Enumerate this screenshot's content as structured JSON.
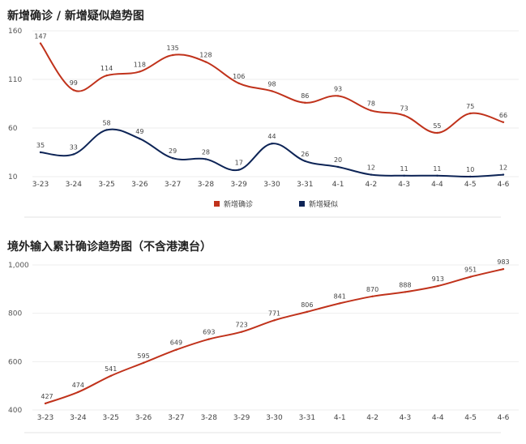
{
  "colors": {
    "confirmed": "#c0321b",
    "suspected": "#0d2456"
  },
  "chart_data": [
    {
      "type": "line",
      "title": "新增确诊 / 新增疑似趋势图",
      "categories": [
        "3-23",
        "3-24",
        "3-25",
        "3-26",
        "3-27",
        "3-28",
        "3-29",
        "3-30",
        "3-31",
        "4-1",
        "4-2",
        "4-3",
        "4-4",
        "4-5",
        "4-6"
      ],
      "series": [
        {
          "name": "新增确诊",
          "color": "#c0321b",
          "values": [
            147,
            99,
            114,
            118,
            135,
            128,
            106,
            98,
            86,
            93,
            78,
            73,
            55,
            75,
            66
          ]
        },
        {
          "name": "新增疑似",
          "color": "#0d2456",
          "values": [
            35,
            33,
            58,
            49,
            29,
            28,
            17,
            44,
            26,
            20,
            12,
            11,
            11,
            10,
            12
          ]
        }
      ],
      "yticks": [
        "10",
        "60",
        "110",
        "160"
      ],
      "ylim": [
        10,
        160
      ],
      "grid": true,
      "legend": "bottom-center"
    },
    {
      "type": "line",
      "title": "境外输入累计确诊趋势图（不含港澳台）",
      "categories": [
        "3-23",
        "3-24",
        "3-25",
        "3-26",
        "3-27",
        "3-28",
        "3-29",
        "3-30",
        "3-31",
        "4-1",
        "4-2",
        "4-3",
        "4-4",
        "4-5",
        "4-6"
      ],
      "series": [
        {
          "color": "#c0321b",
          "values": [
            427,
            474,
            541,
            595,
            649,
            693,
            723,
            771,
            806,
            841,
            870,
            888,
            913,
            951,
            983
          ]
        }
      ],
      "yticks": [
        "400",
        "600",
        "800",
        "1,000"
      ],
      "ylim": [
        400,
        1000
      ],
      "grid": true
    }
  ]
}
